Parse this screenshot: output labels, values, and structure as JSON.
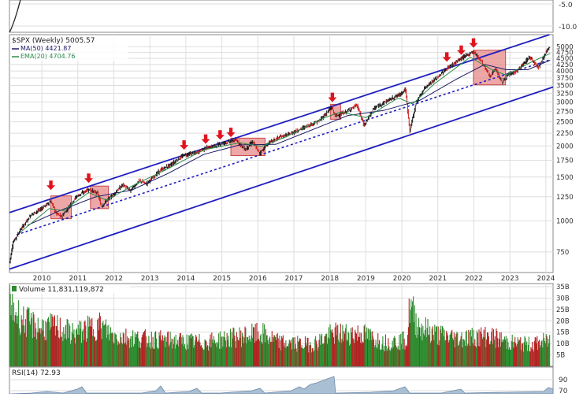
{
  "chart_data": [
    {
      "type": "line",
      "panel": "top-indicator-strip",
      "y_ticks": [
        -5.0,
        -10.0
      ],
      "y_tick_labels": [
        "-5.0",
        "-10.0"
      ]
    },
    {
      "type": "line",
      "panel": "price",
      "legend": {
        "symbol_line": "$SPX (Weekly) 5005.57",
        "ma_line": "MA(50) 4421.87",
        "ema_line": "EMA(20) 4704.76"
      },
      "legend_placement": "top-left",
      "y_scale": "log",
      "ylim": [
        620,
        5600
      ],
      "xlim": [
        2009.1,
        2024.2
      ],
      "grid": true,
      "y_ticks": [
        5000,
        4750,
        4500,
        4250,
        4000,
        3750,
        3500,
        3250,
        3000,
        2750,
        2500,
        2250,
        2000,
        1750,
        1500,
        1250,
        1000,
        750
      ],
      "y_tick_labels": [
        "5000",
        "4750",
        "4500",
        "4250",
        "4000",
        "3750",
        "3500",
        "3250",
        "3000",
        "2750",
        "2500",
        "2250",
        "2000",
        "1750",
        "1500",
        "1250",
        "1000",
        "750"
      ],
      "x_ticks": [
        2010,
        2011,
        2012,
        2013,
        2014,
        2015,
        2016,
        2017,
        2018,
        2019,
        2020,
        2021,
        2022,
        2023,
        2024
      ],
      "x_tick_labels": [
        "2010",
        "2011",
        "2012",
        "2013",
        "2014",
        "2015",
        "2016",
        "2017",
        "2018",
        "2019",
        "2020",
        "2021",
        "2022",
        "2023",
        "2024"
      ],
      "price_anchors": [
        [
          2009.1,
          680
        ],
        [
          2009.2,
          820
        ],
        [
          2009.4,
          920
        ],
        [
          2009.7,
          1060
        ],
        [
          2009.95,
          1110
        ],
        [
          2010.25,
          1200
        ],
        [
          2010.4,
          1070
        ],
        [
          2010.55,
          1040
        ],
        [
          2010.75,
          1140
        ],
        [
          2010.95,
          1250
        ],
        [
          2011.3,
          1340
        ],
        [
          2011.55,
          1290
        ],
        [
          2011.65,
          1140
        ],
        [
          2011.8,
          1210
        ],
        [
          2011.95,
          1260
        ],
        [
          2012.25,
          1400
        ],
        [
          2012.45,
          1320
        ],
        [
          2012.7,
          1450
        ],
        [
          2012.9,
          1410
        ],
        [
          2013.3,
          1600
        ],
        [
          2013.6,
          1690
        ],
        [
          2013.95,
          1840
        ],
        [
          2014.3,
          1880
        ],
        [
          2014.55,
          1960
        ],
        [
          2014.8,
          2000
        ],
        [
          2015.0,
          2050
        ],
        [
          2015.4,
          2110
        ],
        [
          2015.65,
          1930
        ],
        [
          2015.85,
          2080
        ],
        [
          2016.05,
          1870
        ],
        [
          2016.3,
          2060
        ],
        [
          2016.6,
          2170
        ],
        [
          2016.9,
          2240
        ],
        [
          2017.3,
          2380
        ],
        [
          2017.7,
          2520
        ],
        [
          2018.05,
          2860
        ],
        [
          2018.15,
          2640
        ],
        [
          2018.4,
          2720
        ],
        [
          2018.75,
          2920
        ],
        [
          2018.95,
          2420
        ],
        [
          2019.2,
          2810
        ],
        [
          2019.5,
          2990
        ],
        [
          2019.95,
          3230
        ],
        [
          2020.1,
          3380
        ],
        [
          2020.22,
          2300
        ],
        [
          2020.4,
          3000
        ],
        [
          2020.65,
          3450
        ],
        [
          2020.95,
          3730
        ],
        [
          2021.3,
          4150
        ],
        [
          2021.65,
          4500
        ],
        [
          2021.99,
          4790
        ],
        [
          2022.2,
          4400
        ],
        [
          2022.45,
          3800
        ],
        [
          2022.6,
          4100
        ],
        [
          2022.78,
          3600
        ],
        [
          2022.95,
          3850
        ],
        [
          2023.2,
          4000
        ],
        [
          2023.55,
          4550
        ],
        [
          2023.8,
          4150
        ],
        [
          2024.0,
          4770
        ],
        [
          2024.12,
          5005.57
        ]
      ],
      "ma50_anchors": [
        [
          2009.6,
          960
        ],
        [
          2010.5,
          1100
        ],
        [
          2011.5,
          1250
        ],
        [
          2012.5,
          1330
        ],
        [
          2013.5,
          1550
        ],
        [
          2014.5,
          1850
        ],
        [
          2015.5,
          2020
        ],
        [
          2016.5,
          2030
        ],
        [
          2017.5,
          2320
        ],
        [
          2018.5,
          2650
        ],
        [
          2019.5,
          2780
        ],
        [
          2020.5,
          3050
        ],
        [
          2021.5,
          3700
        ],
        [
          2022.3,
          4250
        ],
        [
          2022.9,
          4050
        ],
        [
          2023.5,
          4050
        ],
        [
          2024.12,
          4421.87
        ]
      ],
      "ema20_anchors": [
        [
          2009.4,
          900
        ],
        [
          2010.2,
          1120
        ],
        [
          2010.6,
          1100
        ],
        [
          2011.3,
          1300
        ],
        [
          2011.8,
          1210
        ],
        [
          2012.5,
          1380
        ],
        [
          2013.5,
          1620
        ],
        [
          2014.5,
          1930
        ],
        [
          2015.5,
          2060
        ],
        [
          2016.1,
          1990
        ],
        [
          2016.8,
          2180
        ],
        [
          2017.8,
          2580
        ],
        [
          2018.3,
          2740
        ],
        [
          2019.0,
          2600
        ],
        [
          2019.9,
          3120
        ],
        [
          2020.3,
          2950
        ],
        [
          2020.9,
          3550
        ],
        [
          2021.9,
          4550
        ],
        [
          2022.5,
          4050
        ],
        [
          2022.9,
          3850
        ],
        [
          2023.6,
          4350
        ],
        [
          2024.12,
          4704.76
        ]
      ],
      "channel_lines": [
        {
          "style": "solid",
          "points": [
            [
              2009.1,
              1080
            ],
            [
              2024.1,
              5600
            ]
          ]
        },
        {
          "style": "dashed",
          "points": [
            [
              2009.3,
              880
            ],
            [
              2024.1,
              4430
            ]
          ]
        },
        {
          "style": "solid",
          "points": [
            [
              2009.1,
              640
            ],
            [
              2024.3,
              3450
            ]
          ]
        }
      ],
      "highlight_boxes": [
        {
          "x": [
            2010.25,
            2010.82
          ],
          "y": [
            1020,
            1260
          ]
        },
        {
          "x": [
            2011.35,
            2011.85
          ],
          "y": [
            1120,
            1380
          ]
        },
        {
          "x": [
            2015.25,
            2016.2
          ],
          "y": [
            1830,
            2150
          ]
        },
        {
          "x": [
            2018.02,
            2018.3
          ],
          "y": [
            2560,
            2940
          ]
        },
        {
          "x": [
            2021.99,
            2022.88
          ],
          "y": [
            3520,
            4850
          ]
        }
      ],
      "arrow_markers": [
        {
          "x": 2010.25,
          "y": 1330
        },
        {
          "x": 2011.3,
          "y": 1420
        },
        {
          "x": 2013.95,
          "y": 1930
        },
        {
          "x": 2014.55,
          "y": 2040
        },
        {
          "x": 2014.95,
          "y": 2120
        },
        {
          "x": 2015.25,
          "y": 2170
        },
        {
          "x": 2018.07,
          "y": 3000
        },
        {
          "x": 2021.25,
          "y": 4360
        },
        {
          "x": 2021.65,
          "y": 4640
        },
        {
          "x": 2021.99,
          "y": 4960
        }
      ]
    },
    {
      "type": "bar",
      "panel": "volume",
      "legend": {
        "label": "Volume 11,831,119,872"
      },
      "ylim": [
        0,
        35
      ],
      "y_ticks": [
        35,
        30,
        25,
        20,
        15,
        10,
        5
      ],
      "y_tick_labels": [
        "35B",
        "30B",
        "25B",
        "20B",
        "15B",
        "10B",
        "5B"
      ],
      "volume_profile_anchors": [
        [
          2009.1,
          28
        ],
        [
          2009.5,
          21
        ],
        [
          2009.9,
          18
        ],
        [
          2010.4,
          18
        ],
        [
          2010.9,
          15
        ],
        [
          2011.6,
          19
        ],
        [
          2012.0,
          14
        ],
        [
          2012.6,
          13
        ],
        [
          2013.5,
          12
        ],
        [
          2014.5,
          11
        ],
        [
          2015.6,
          14
        ],
        [
          2016.1,
          15
        ],
        [
          2016.6,
          11
        ],
        [
          2017.5,
          10
        ],
        [
          2018.1,
          15
        ],
        [
          2018.9,
          15
        ],
        [
          2019.5,
          11
        ],
        [
          2020.15,
          12
        ],
        [
          2020.22,
          28
        ],
        [
          2020.45,
          19
        ],
        [
          2020.9,
          15
        ],
        [
          2021.5,
          13
        ],
        [
          2022.4,
          14
        ],
        [
          2023.0,
          11
        ],
        [
          2023.6,
          10
        ],
        [
          2024.12,
          12
        ]
      ],
      "colors": {
        "up": "#2e8b2e",
        "down": "#b22222"
      }
    },
    {
      "type": "area",
      "panel": "rsi",
      "legend": {
        "label": "RSI(14) 72.93"
      },
      "y_ticks": [
        90,
        70
      ],
      "y_tick_labels": [
        "90",
        "70"
      ]
    }
  ],
  "colors": {
    "channel": "#1f1fbf",
    "price_up": "#1a1a1a",
    "price_down": "#cc1f1f",
    "ma50": "#1a1a66",
    "ema20": "#2a8a4a",
    "highlight_fill": "#e88a8a",
    "highlight_stroke": "#c84848",
    "arrow": "#e0141e",
    "grid": "#dedede",
    "rsi_fill": "#a9bfd4"
  }
}
